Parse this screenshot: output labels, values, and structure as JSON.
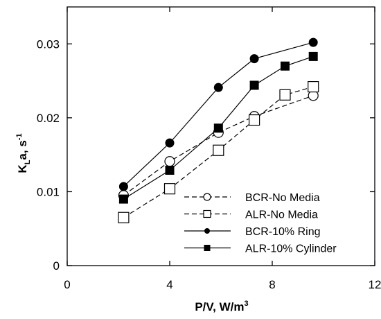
{
  "chart_data": {
    "type": "line",
    "xlabel": "P/V, W/m",
    "xlabel_sup": "3",
    "ylabel_main": "K",
    "ylabel_sub": "L",
    "ylabel_rest": "a, s",
    "ylabel_sup": "-1",
    "xlim": [
      0,
      12
    ],
    "ylim": [
      0,
      0.035
    ],
    "xticks": [
      0,
      4,
      8,
      12
    ],
    "xtick_labels": [
      "0",
      "4",
      "8",
      "12"
    ],
    "yticks": [
      0,
      0.01,
      0.02,
      0.03
    ],
    "ytick_labels": [
      "0",
      "0.01",
      "0.02",
      "0.03"
    ],
    "grid": false,
    "legend_position": "bottom-right",
    "series": [
      {
        "name": "BCR-No Media",
        "marker": "open-circle",
        "line_style": "dashed",
        "x": [
          2.2,
          4.0,
          5.9,
          7.3,
          9.6
        ],
        "y": [
          0.0095,
          0.0141,
          0.018,
          0.0202,
          0.023
        ]
      },
      {
        "name": "ALR-No Media",
        "marker": "open-square",
        "line_style": "dashed",
        "x": [
          2.2,
          4.0,
          5.9,
          7.3,
          8.5,
          9.6
        ],
        "y": [
          0.0065,
          0.0104,
          0.0156,
          0.0197,
          0.0231,
          0.0242
        ]
      },
      {
        "name": "BCR-10% Ring",
        "marker": "filled-circle",
        "line_style": "solid",
        "x": [
          2.2,
          4.0,
          5.9,
          7.3,
          9.6
        ],
        "y": [
          0.0107,
          0.0166,
          0.0241,
          0.028,
          0.0302
        ]
      },
      {
        "name": "ALR-10% Cylinder",
        "marker": "filled-square",
        "line_style": "solid",
        "x": [
          2.2,
          4.0,
          5.9,
          7.3,
          8.5,
          9.6
        ],
        "y": [
          0.009,
          0.0129,
          0.0186,
          0.0244,
          0.027,
          0.0283
        ]
      }
    ]
  }
}
